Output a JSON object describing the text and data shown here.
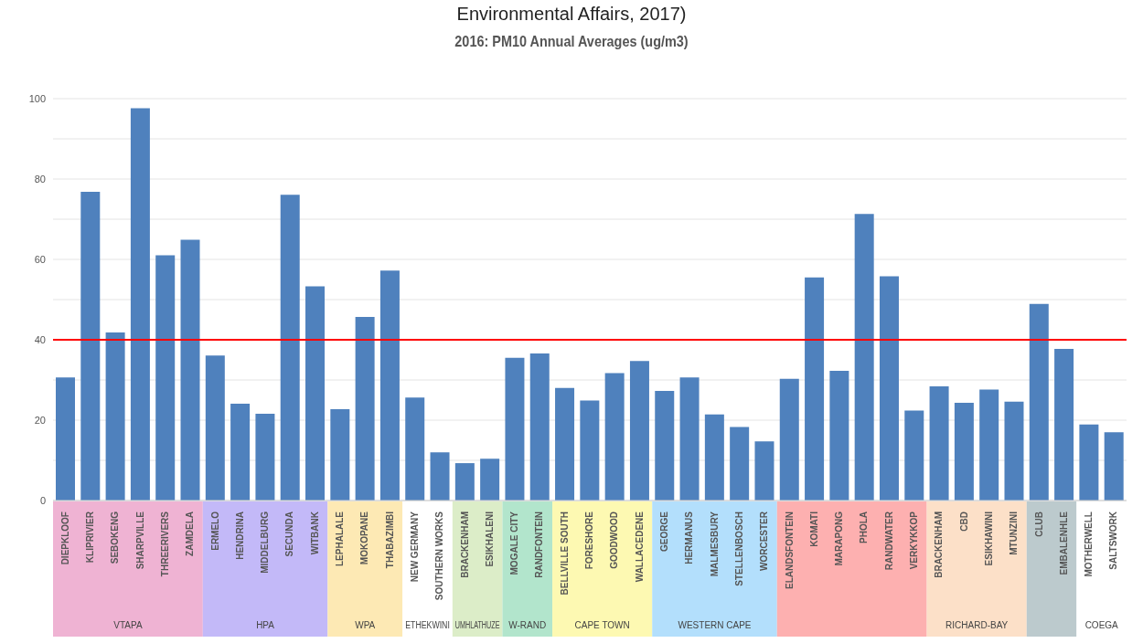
{
  "chart_data": {
    "type": "bar",
    "title": "2016: PM10 Annual Averages (ug/m3)",
    "annotations": [
      "Environmental Affairs, 2017)",
      "VTAPA",
      "HPA",
      "WPA",
      "ETHEKWINI",
      "UMHLATHUZE",
      "W-RAND",
      "CAPE TOWN",
      "WESTERN CAPE",
      "RICHARD-BAY",
      "COEGA"
    ],
    "categories": [
      "DIEPKLOOF",
      "KLIPRIVIER",
      "SEBOKENG",
      "SHARPVILLE",
      "THREERIVERS",
      "ZAMDELA",
      "ERMELO",
      "HENDRINA",
      "MIDDELBURG",
      "SECUNDA",
      "WITBANK",
      "LEPHALALE",
      "MOKOPANE",
      "THABAZIMBI",
      "NEW GERMANY",
      "SOUTHERN WORKS",
      "BRACKENHAM",
      "ESIKHALENI",
      "MOGALE CITY",
      "RANDFONTEIN",
      "BELLVILLE SOUTH",
      "FORESHORE",
      "GOODWOOD",
      "WALLACEDENE",
      "GEORGE",
      "HERMANUS",
      "MALMESBURY",
      "STELLENBOSCH",
      "WORCESTER",
      "ELANDSFONTEIN",
      "KOMATI",
      "MARAPONG",
      "PHOLA",
      "RANDWATER",
      "VERKYKKOP",
      "BRACKENHAM",
      "CBD",
      "ESIKHAWINI",
      "MTUNZINI",
      "CLUB",
      "EMBALENHLE",
      "MOTHERWELL",
      "SALTSWORK"
    ],
    "values": [
      30.6,
      76.8,
      41.8,
      97.6,
      61.0,
      64.9,
      36.1,
      24.1,
      21.6,
      76.1,
      53.3,
      22.7,
      45.7,
      57.2,
      25.6,
      12.0,
      9.3,
      10.4,
      35.5,
      36.6,
      28.0,
      24.9,
      31.7,
      34.7,
      27.3,
      30.6,
      21.4,
      18.3,
      14.7,
      30.3,
      55.5,
      32.3,
      71.3,
      55.8,
      22.4,
      28.4,
      24.3,
      27.6,
      24.6,
      48.9,
      37.7,
      18.9,
      17.0
    ],
    "color": "#4f81bd",
    "ylim": [
      0,
      100
    ],
    "yticks": [
      0,
      {
        "value": 10,
        "label": null
      },
      20,
      {
        "value": 30,
        "label": null
      },
      40,
      {
        "value": 50,
        "label": null
      },
      60,
      {
        "value": 70,
        "label": null
      },
      80,
      {
        "value": 90,
        "label": null
      },
      100
    ],
    "grid": "y",
    "ref_lines": [
      {
        "axis": "y",
        "value": 40,
        "color": "#ff0000"
      }
    ]
  }
}
